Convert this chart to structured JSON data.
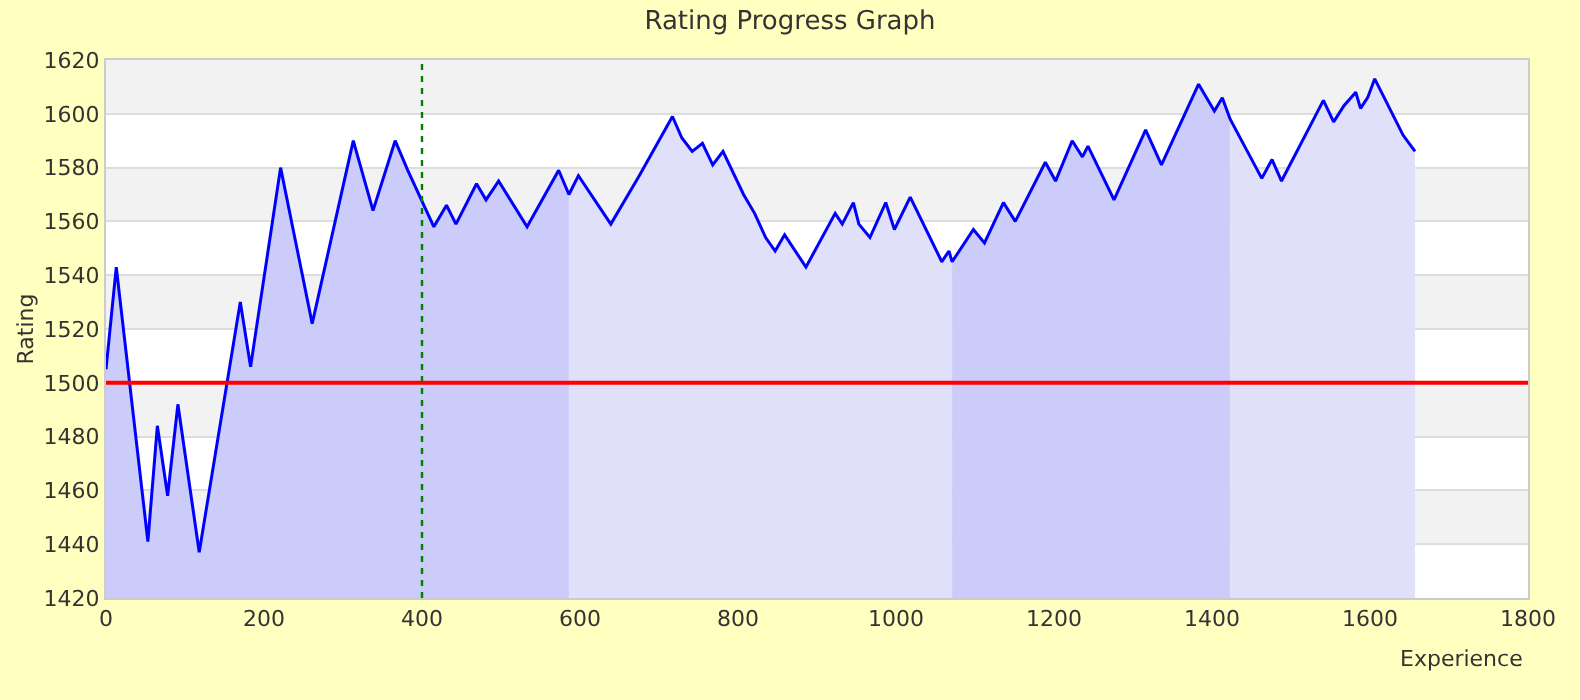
{
  "chart_data": {
    "type": "area",
    "title": "Rating Progress Graph",
    "xlabel": "Experience",
    "ylabel": "Rating",
    "xlim": [
      0,
      1800
    ],
    "xticks": [
      0,
      200,
      400,
      600,
      800,
      1000,
      1200,
      1400,
      1600,
      1800
    ],
    "ylim": [
      1420,
      1620
    ],
    "yticks": [
      1420,
      1440,
      1460,
      1480,
      1500,
      1520,
      1540,
      1560,
      1580,
      1600,
      1620
    ],
    "grid": "y",
    "ref_lines": [
      {
        "axis": "y",
        "value": 1500,
        "color": "#ff0000",
        "line_style": "solid"
      },
      {
        "axis": "x",
        "value": 400,
        "color": "#008000",
        "line_style": "dotted"
      }
    ],
    "series": [
      {
        "color": "#ccccfa",
        "x": [
          0,
          13,
          53,
          65,
          78,
          91,
          118,
          170,
          183,
          221,
          261,
          313,
          338,
          366,
          382,
          415,
          431,
          443,
          469,
          481,
          497,
          533,
          573,
          586
        ],
        "values": [
          1505,
          1543,
          1441,
          1484,
          1458,
          1492,
          1437,
          1530,
          1506,
          1580,
          1522,
          1590,
          1564,
          1590,
          1579,
          1558,
          1566,
          1559,
          1574,
          1568,
          1575,
          1558,
          1579,
          1570
        ]
      },
      {
        "color": "#e0e0fa",
        "x": [
          586,
          598,
          639,
          675,
          717,
          729,
          742,
          755,
          768,
          781,
          807,
          821,
          835,
          847,
          859,
          886,
          923,
          932,
          946,
          953,
          967,
          987,
          998,
          1018,
          1058,
          1067,
          1071
        ],
        "values": [
          1570,
          1577,
          1559,
          1577,
          1599,
          1591,
          1586,
          1589,
          1581,
          1586,
          1570,
          1563,
          1554,
          1549,
          1555,
          1543,
          1563,
          1559,
          1567,
          1559,
          1554,
          1567,
          1557,
          1569,
          1545,
          1549,
          1545
        ]
      },
      {
        "color": "#ccccfa",
        "x": [
          1071,
          1098,
          1112,
          1136,
          1151,
          1189,
          1202,
          1223,
          1236,
          1243,
          1276,
          1316,
          1336,
          1383,
          1403,
          1413,
          1423
        ],
        "values": [
          1545,
          1557,
          1552,
          1567,
          1560,
          1582,
          1575,
          1590,
          1584,
          1588,
          1568,
          1594,
          1581,
          1611,
          1601,
          1606,
          1598
        ]
      },
      {
        "color": "#e0e0fa",
        "x": [
          1423,
          1463,
          1476,
          1488,
          1541,
          1554,
          1567,
          1582,
          1588,
          1597,
          1606,
          1642,
          1657
        ],
        "values": [
          1598,
          1576,
          1583,
          1575,
          1605,
          1597,
          1603,
          1608,
          1602,
          1606,
          1613,
          1592,
          1586
        ]
      },
      {
        "type": "line",
        "color": "#0000ff",
        "x": [
          0,
          13,
          53,
          65,
          78,
          91,
          118,
          170,
          183,
          221,
          261,
          313,
          338,
          366,
          382,
          415,
          431,
          443,
          469,
          481,
          497,
          533,
          573,
          586,
          598,
          639,
          675,
          717,
          729,
          742,
          755,
          768,
          781,
          807,
          821,
          835,
          847,
          859,
          886,
          923,
          932,
          946,
          953,
          967,
          987,
          998,
          1018,
          1058,
          1067,
          1071,
          1098,
          1112,
          1136,
          1151,
          1189,
          1202,
          1223,
          1236,
          1243,
          1276,
          1316,
          1336,
          1383,
          1403,
          1413,
          1423,
          1463,
          1476,
          1488,
          1541,
          1554,
          1567,
          1582,
          1588,
          1597,
          1606,
          1642,
          1657
        ],
        "values": [
          1505,
          1543,
          1441,
          1484,
          1458,
          1492,
          1437,
          1530,
          1506,
          1580,
          1522,
          1590,
          1564,
          1590,
          1579,
          1558,
          1566,
          1559,
          1574,
          1568,
          1575,
          1558,
          1579,
          1570,
          1577,
          1559,
          1577,
          1599,
          1591,
          1586,
          1589,
          1581,
          1586,
          1570,
          1563,
          1554,
          1549,
          1555,
          1543,
          1563,
          1559,
          1567,
          1559,
          1554,
          1567,
          1557,
          1569,
          1545,
          1549,
          1545,
          1557,
          1552,
          1567,
          1560,
          1582,
          1575,
          1590,
          1584,
          1588,
          1568,
          1594,
          1581,
          1611,
          1601,
          1606,
          1598,
          1576,
          1583,
          1575,
          1605,
          1597,
          1603,
          1608,
          1602,
          1606,
          1613,
          1592,
          1586
        ]
      }
    ]
  }
}
